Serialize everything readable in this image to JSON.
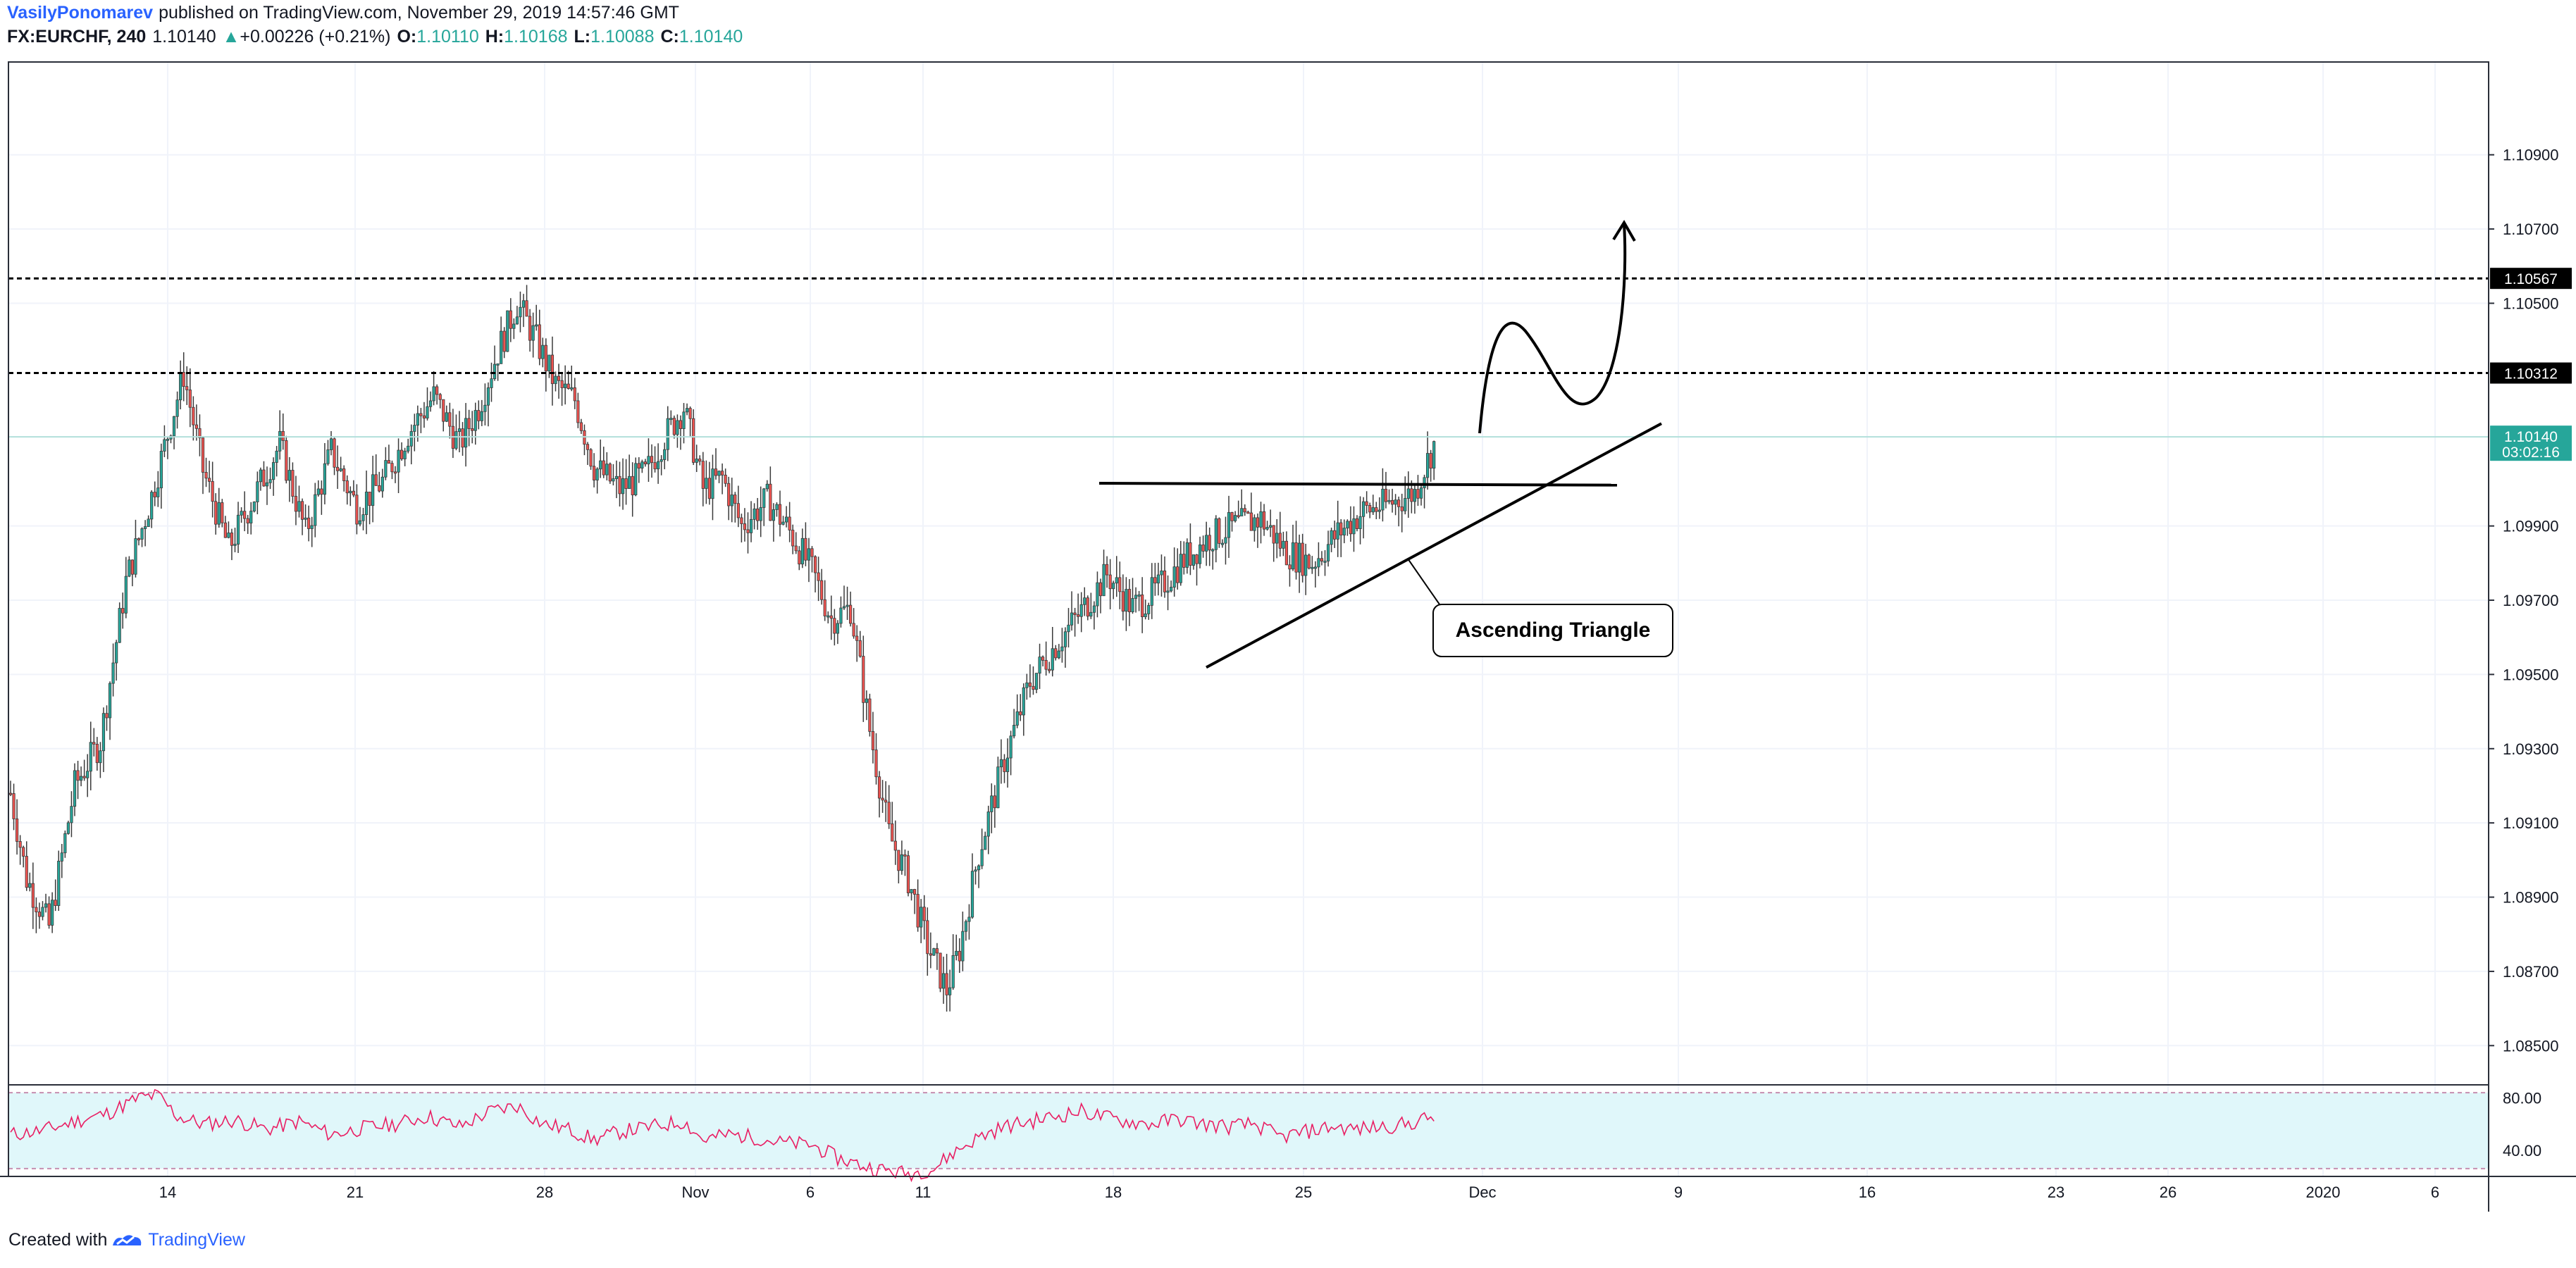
{
  "header": {
    "publisher": "VasilyPonomarev",
    "published_text": "published on TradingView.com, November 29, 2019 14:57:46 GMT",
    "symbol": "FX:EURCHF, 240",
    "last_price": "1.10140",
    "change": "+0.00226 (+0.21%)",
    "open_label": "O:",
    "open": "1.10110",
    "high_label": "H:",
    "high": "1.10168",
    "low_label": "L:",
    "low": "1.10088",
    "close_label": "C:",
    "close": "1.10140"
  },
  "footer": {
    "created_with": "Created with",
    "brand": "TradingView"
  },
  "colors": {
    "up": "#26a69a",
    "down": "#ef5350",
    "rsi_line": "#e91e63",
    "rsi_band": "#e0f7fa",
    "grid": "#f0f3fa",
    "price_tag": "#26a69a",
    "level_tag": "#000000"
  },
  "chart_data": {
    "type": "candlestick",
    "symbol": "FX:EURCHF",
    "interval": "240",
    "ylim": [
      1.084,
      1.1115
    ],
    "price_axis_ticks": [
      "1.10900",
      "1.10700",
      "1.10500",
      "1.09900",
      "1.09700",
      "1.09500",
      "1.09300",
      "1.09100",
      "1.08900",
      "1.08700",
      "1.08500"
    ],
    "time_axis_ticks": [
      "14",
      "21",
      "28",
      "Nov",
      "6",
      "11",
      "18",
      "25",
      "Dec",
      "9",
      "16",
      "23",
      "26",
      "2020",
      "6"
    ],
    "horizontal_levels": [
      {
        "label": "1.10567",
        "value": 1.10567,
        "style": "dashed"
      },
      {
        "label": "1.10312",
        "value": 1.10312,
        "style": "dashed"
      }
    ],
    "current_price": {
      "label": "1.10140",
      "value": 1.1014,
      "countdown": "03:02:16"
    },
    "annotation": "Ascending Triangle",
    "price_path": [
      [
        0,
        1.0918
      ],
      [
        5,
        1.0895
      ],
      [
        12,
        1.0882
      ],
      [
        20,
        1.092
      ],
      [
        28,
        1.0932
      ],
      [
        36,
        1.0975
      ],
      [
        44,
        1.0998
      ],
      [
        50,
        1.1018
      ],
      [
        54,
        1.1031
      ],
      [
        60,
        1.1005
      ],
      [
        68,
        1.0984
      ],
      [
        76,
        1.0998
      ],
      [
        84,
        1.1012
      ],
      [
        92,
        1.0988
      ],
      [
        100,
        1.101
      ],
      [
        108,
        1.0995
      ],
      [
        116,
        1.1002
      ],
      [
        124,
        1.1015
      ],
      [
        132,
        1.1025
      ],
      [
        140,
        1.1012
      ],
      [
        146,
        1.1022
      ],
      [
        152,
        1.1037
      ],
      [
        158,
        1.105
      ],
      [
        164,
        1.104
      ],
      [
        170,
        1.1028
      ],
      [
        176,
        1.1024
      ],
      [
        182,
        1.1006
      ],
      [
        190,
        1.1
      ],
      [
        198,
        1.1004
      ],
      [
        204,
        1.1014
      ],
      [
        210,
        1.1022
      ],
      [
        216,
        1.1
      ],
      [
        222,
        1.1003
      ],
      [
        228,
        1.099
      ],
      [
        236,
        1.0997
      ],
      [
        242,
        1.099
      ],
      [
        250,
        1.0978
      ],
      [
        256,
        1.0965
      ],
      [
        262,
        1.0968
      ],
      [
        268,
        1.0935
      ],
      [
        274,
        1.0907
      ],
      [
        280,
        1.0895
      ],
      [
        286,
        1.0877
      ],
      [
        292,
        1.0865
      ],
      [
        296,
        1.0876
      ],
      [
        302,
        1.0902
      ],
      [
        310,
        1.0927
      ],
      [
        318,
        1.0948
      ],
      [
        326,
        1.0958
      ],
      [
        334,
        1.0967
      ],
      [
        342,
        1.0977
      ],
      [
        350,
        1.0968
      ],
      [
        358,
        1.0973
      ],
      [
        366,
        1.0981
      ],
      [
        374,
        1.0987
      ],
      [
        382,
        1.099
      ],
      [
        390,
        1.0992
      ],
      [
        398,
        1.0983
      ],
      [
        406,
        1.098
      ],
      [
        414,
        1.0988
      ],
      [
        422,
        1.0994
      ],
      [
        430,
        1.0996
      ],
      [
        438,
        1.0999
      ],
      [
        444,
        1.1012
      ]
    ],
    "rsi": {
      "levels": [
        "80.00",
        "40.00"
      ],
      "ylim": [
        20,
        90
      ],
      "values": [
        [
          0,
          52
        ],
        [
          10,
          55
        ],
        [
          20,
          62
        ],
        [
          30,
          68
        ],
        [
          40,
          80
        ],
        [
          46,
          82
        ],
        [
          52,
          66
        ],
        [
          60,
          60
        ],
        [
          70,
          63
        ],
        [
          80,
          56
        ],
        [
          90,
          62
        ],
        [
          100,
          52
        ],
        [
          110,
          57
        ],
        [
          120,
          60
        ],
        [
          130,
          66
        ],
        [
          140,
          58
        ],
        [
          150,
          70
        ],
        [
          158,
          74
        ],
        [
          166,
          60
        ],
        [
          174,
          56
        ],
        [
          182,
          48
        ],
        [
          190,
          54
        ],
        [
          200,
          58
        ],
        [
          210,
          62
        ],
        [
          216,
          48
        ],
        [
          224,
          52
        ],
        [
          232,
          50
        ],
        [
          240,
          46
        ],
        [
          250,
          44
        ],
        [
          258,
          34
        ],
        [
          266,
          28
        ],
        [
          272,
          25
        ],
        [
          280,
          22
        ],
        [
          288,
          26
        ],
        [
          294,
          38
        ],
        [
          302,
          50
        ],
        [
          310,
          58
        ],
        [
          318,
          62
        ],
        [
          326,
          66
        ],
        [
          334,
          70
        ],
        [
          340,
          66
        ],
        [
          348,
          62
        ],
        [
          356,
          60
        ],
        [
          364,
          64
        ],
        [
          372,
          60
        ],
        [
          380,
          58
        ],
        [
          388,
          60
        ],
        [
          396,
          50
        ],
        [
          404,
          54
        ],
        [
          412,
          58
        ],
        [
          420,
          56
        ],
        [
          428,
          58
        ],
        [
          436,
          60
        ],
        [
          444,
          66
        ]
      ]
    }
  }
}
